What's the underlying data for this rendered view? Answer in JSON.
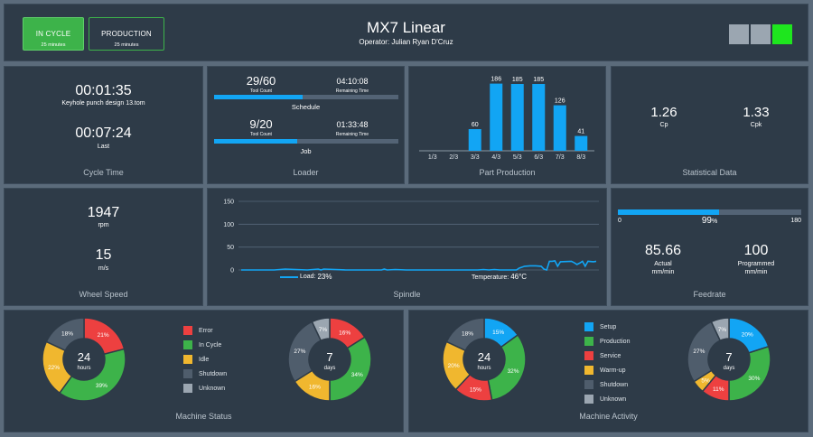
{
  "colors": {
    "accent": "#12a5f4",
    "green": "#3db34a",
    "red": "#ed4040",
    "yellow": "#f0b72f",
    "dark_gray": "#4f5d6c",
    "light_gray": "#9ba6b1",
    "panel": "#2e3b48"
  },
  "header": {
    "title": "MX7 Linear",
    "operator": "Operator: Julian Ryan D'Cruz",
    "in_cycle": {
      "label": "IN CYCLE",
      "time": "25 minutes"
    },
    "production": {
      "label": "PRODUCTION",
      "time": "25 minutes"
    },
    "status_lights": [
      "gray",
      "gray",
      "green"
    ]
  },
  "cycle_time": {
    "time": "00:01:35",
    "program": "Keyhole punch design 13.tom",
    "last_time": "00:07:24",
    "last_label": "Last",
    "title": "Cycle Time"
  },
  "loader": {
    "schedule": {
      "count": "29",
      "total": "60",
      "count_label": "Tool Count",
      "remaining": "04:10:08",
      "remaining_label": "Remaining Time",
      "progress": 0.48,
      "label": "Schedule"
    },
    "job": {
      "count": "9",
      "total": "20",
      "count_label": "Tool Count",
      "remaining": "01:33:48",
      "remaining_label": "Remaining Time",
      "progress": 0.45,
      "label": "Job"
    },
    "title": "Loader"
  },
  "part_production": {
    "title": "Part Production",
    "chart_data": {
      "type": "bar",
      "categories": [
        "1/3",
        "2/3",
        "3/3",
        "4/3",
        "5/3",
        "6/3",
        "7/3",
        "8/3"
      ],
      "values": [
        0,
        0,
        60,
        186,
        185,
        185,
        126,
        41
      ],
      "labels": [
        "",
        "",
        "60",
        "186",
        "185",
        "185",
        "126",
        "41"
      ],
      "ylim": [
        0,
        190
      ]
    }
  },
  "statistical": {
    "cp_value": "1.26",
    "cp_label": "Cp",
    "cpk_value": "1.33",
    "cpk_label": "Cpk",
    "title": "Statistical Data"
  },
  "wheel_speed": {
    "rpm_value": "1947",
    "rpm_unit": "rpm",
    "ms_value": "15",
    "ms_unit": "m/s",
    "title": "Wheel Speed"
  },
  "spindle": {
    "title": "Spindle",
    "load_label": "Load:",
    "load_value": "23%",
    "temp_label": "Temperature:",
    "temp_value": "46°C",
    "chart_data": {
      "type": "line",
      "yticks": [
        "150",
        "100",
        "50",
        "0"
      ],
      "ylim": [
        0,
        150
      ],
      "x": [
        0,
        60,
        80,
        120,
        140,
        145,
        150,
        190,
        255,
        260,
        265,
        280,
        300,
        430,
        440,
        450,
        460,
        470,
        500,
        505,
        515,
        525,
        535,
        545,
        550,
        555,
        560,
        565,
        570,
        575,
        580,
        600,
        605,
        610,
        615,
        620,
        625,
        630,
        640,
        645
      ],
      "y": [
        0,
        0,
        2,
        0,
        2,
        0,
        2,
        0,
        0,
        2,
        0,
        1,
        0,
        0,
        1,
        0,
        1,
        0,
        0,
        4,
        8,
        9,
        9,
        8,
        2,
        0,
        19,
        19,
        20,
        8,
        18,
        19,
        16,
        12,
        15,
        19,
        8,
        19,
        18,
        19
      ]
    }
  },
  "feedrate": {
    "min": "0",
    "max": "180",
    "percent": "99",
    "percent_unit": "%",
    "fraction": 0.55,
    "actual_value": "85.66",
    "actual_label": "Actual",
    "actual_unit": "mm/min",
    "programmed_value": "100",
    "programmed_label": "Programmed",
    "programmed_unit": "mm/min",
    "title": "Feedrate"
  },
  "machine_status": {
    "title": "Machine Status",
    "legend": [
      {
        "label": "Error",
        "color": "#ed4040"
      },
      {
        "label": "In Cycle",
        "color": "#3db34a"
      },
      {
        "label": "Idle",
        "color": "#f0b72f"
      },
      {
        "label": "Shutdown",
        "color": "#4f5d6c"
      },
      {
        "label": "Unknown",
        "color": "#9ba6b1"
      }
    ],
    "donut_hours": {
      "center_value": "24",
      "center_unit": "hours",
      "slices": [
        {
          "value": 21,
          "label": "21%",
          "color": "#ed4040"
        },
        {
          "value": 39,
          "label": "39%",
          "color": "#3db34a"
        },
        {
          "value": 22,
          "label": "22%",
          "color": "#f0b72f"
        },
        {
          "value": 18,
          "label": "18%",
          "color": "#4f5d6c"
        }
      ]
    },
    "donut_days": {
      "center_value": "7",
      "center_unit": "days",
      "slices": [
        {
          "value": 16,
          "label": "16%",
          "color": "#ed4040"
        },
        {
          "value": 34,
          "label": "34%",
          "color": "#3db34a"
        },
        {
          "value": 16,
          "label": "16%",
          "color": "#f0b72f"
        },
        {
          "value": 27,
          "label": "27%",
          "color": "#4f5d6c"
        },
        {
          "value": 7,
          "label": "7%",
          "color": "#9ba6b1"
        }
      ]
    }
  },
  "machine_activity": {
    "title": "Machine Activity",
    "legend": [
      {
        "label": "Setup",
        "color": "#12a5f4"
      },
      {
        "label": "Production",
        "color": "#3db34a"
      },
      {
        "label": "Service",
        "color": "#ed4040"
      },
      {
        "label": "Warm-up",
        "color": "#f0b72f"
      },
      {
        "label": "Shutdown",
        "color": "#4f5d6c"
      },
      {
        "label": "Unknown",
        "color": "#9ba6b1"
      }
    ],
    "donut_hours": {
      "center_value": "24",
      "center_unit": "hours",
      "slices": [
        {
          "value": 15,
          "label": "15%",
          "color": "#12a5f4"
        },
        {
          "value": 32,
          "label": "32%",
          "color": "#3db34a"
        },
        {
          "value": 15,
          "label": "15%",
          "color": "#ed4040"
        },
        {
          "value": 20,
          "label": "20%",
          "color": "#f0b72f"
        },
        {
          "value": 18,
          "label": "18%",
          "color": "#4f5d6c"
        }
      ]
    },
    "donut_days": {
      "center_value": "7",
      "center_unit": "days",
      "slices": [
        {
          "value": 20,
          "label": "20%",
          "color": "#12a5f4"
        },
        {
          "value": 30,
          "label": "30%",
          "color": "#3db34a"
        },
        {
          "value": 11,
          "label": "11%",
          "color": "#ed4040"
        },
        {
          "value": 5,
          "label": "5%",
          "color": "#f0b72f"
        },
        {
          "value": 27,
          "label": "27%",
          "color": "#4f5d6c"
        },
        {
          "value": 7,
          "label": "7%",
          "color": "#9ba6b1"
        }
      ]
    }
  }
}
